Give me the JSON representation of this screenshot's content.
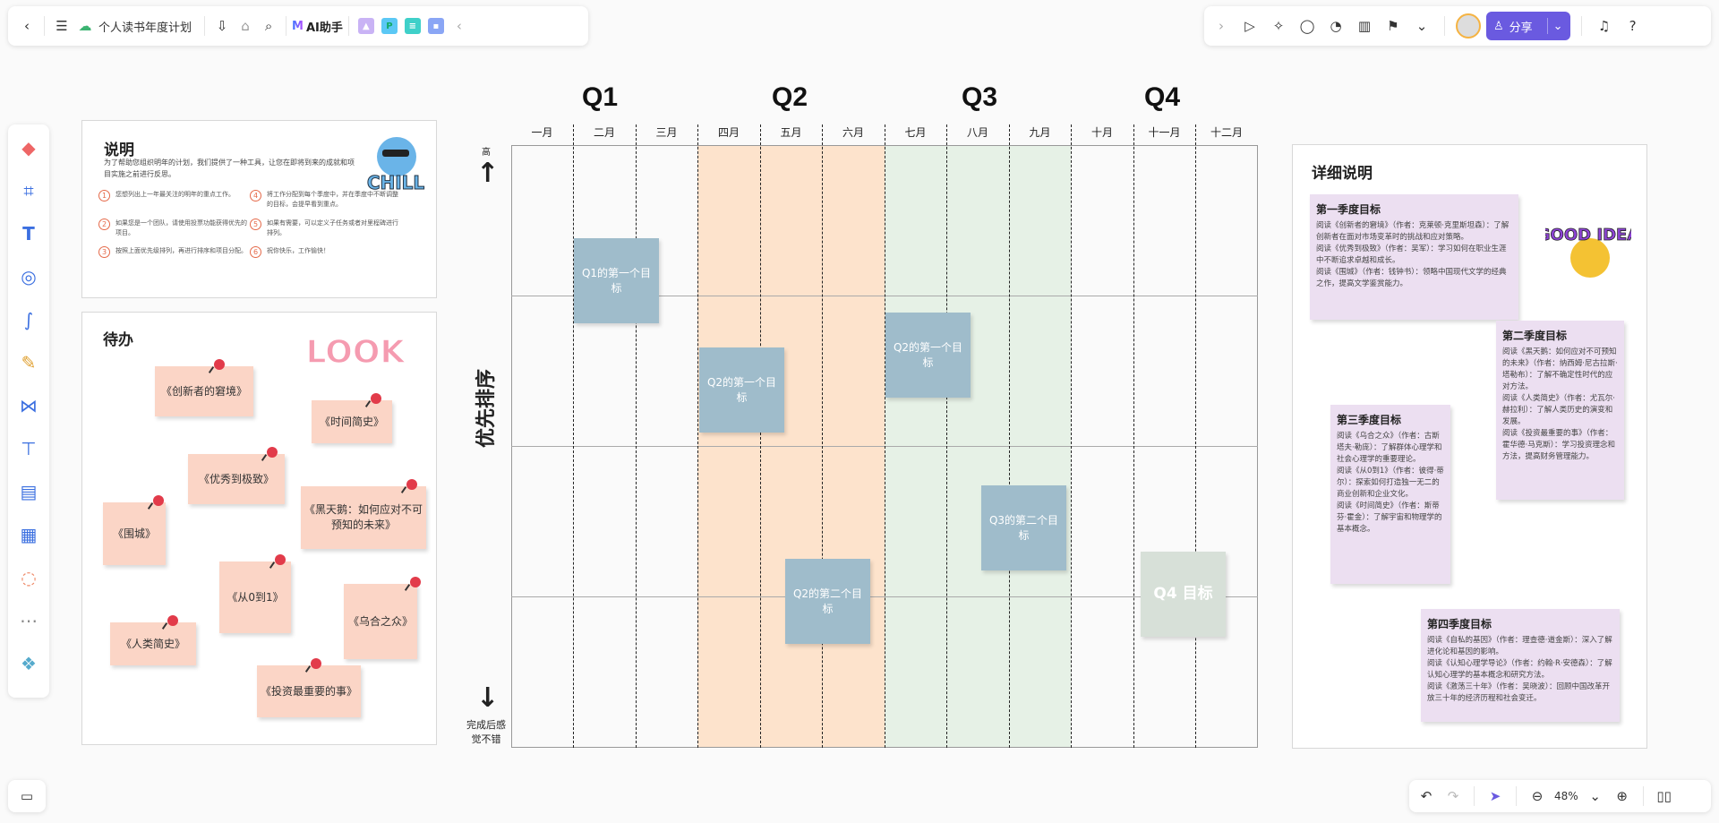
{
  "toolbar": {
    "doc_title": "个人读书年度计划",
    "ai_label": "AI助手",
    "share_label": "分享",
    "zoom": "48%"
  },
  "explain": {
    "title": "说明",
    "intro": "为了帮助您组织明年的计划，我们提供了一种工具，让您在即将到来的成就和项目实施之前进行反思。",
    "steps": [
      {
        "n": "1",
        "text": "您想列出上一年最关注的明年的重点工作。"
      },
      {
        "n": "2",
        "text": "如果您是一个团队，请使用投票功能获得优先的项目。"
      },
      {
        "n": "3",
        "text": "按照上面优先级排列，再进行排序和项目分配。"
      },
      {
        "n": "4",
        "text": "将工作分配到每个季度中，并在季度中不断调整的目标，会提早看到重点。"
      },
      {
        "n": "5",
        "text": "如果有需要，可以定义子任务或者对里程碑进行排列。"
      },
      {
        "n": "6",
        "text": "祝你快乐，工作愉快！"
      }
    ],
    "sticker": "CHILL"
  },
  "todo": {
    "title": "待办",
    "sticker": "LOOK",
    "notes": [
      "《创新者的窘境》",
      "《时间简史》",
      "《优秀到极致》",
      "《黑天鹅：如何应对不可预知的未来》",
      "《围城》",
      "《从0到1》",
      "《乌合之众》",
      "《人类简史》",
      "《投资最重要的事》"
    ]
  },
  "grid": {
    "quarters": [
      "Q1",
      "Q2",
      "Q3",
      "Q4"
    ],
    "months": [
      "一月",
      "二月",
      "三月",
      "四月",
      "五月",
      "六月",
      "七月",
      "八月",
      "九月",
      "十月",
      "十一月",
      "十二月"
    ],
    "axis_title": "优先排序",
    "axis_top": "高",
    "axis_bottom": "完成后感觉不错",
    "goals": [
      "Q1的第一个目标",
      "Q2的第一个目标",
      "Q2的第一个目标",
      "Q2的第二个目标",
      "Q3的第二个目标",
      "Q4 目标"
    ],
    "colors": {
      "q2": "#fde3cc",
      "q3": "#e6f1e6",
      "goal": "#9fbccb",
      "q4goal": "#d7e0d8"
    }
  },
  "detail": {
    "title": "详细说明",
    "sticker": "GOOD IDEA",
    "notes": [
      {
        "title": "第一季度目标",
        "lines": [
          "阅读《创新者的窘境》（作者：克莱顿·克里斯坦森）：了解创新者在面对市场变革时的挑战和应对策略。",
          "阅读《优秀到极致》（作者：吴军）：学习如何在职业生涯中不断追求卓越和成长。",
          "阅读《围城》（作者：钱钟书）：领略中国现代文学的经典之作，提高文学鉴赏能力。"
        ]
      },
      {
        "title": "第二季度目标",
        "lines": [
          "阅读《黑天鹅：如何应对不可预知的未来》（作者：纳西姆·尼古拉斯·塔勒布）：了解不确定性时代的应对方法。",
          "阅读《人类简史》（作者：尤瓦尔·赫拉利）：了解人类历史的演变和发展。",
          "阅读《投资最重要的事》（作者：霍华德·马克斯）：学习投资理念和方法，提高财务管理能力。"
        ]
      },
      {
        "title": "第三季度目标",
        "lines": [
          "阅读《乌合之众》（作者：古斯塔夫·勒庞）：了解群体心理学和社会心理学的重要理论。",
          "阅读《从0到1》（作者：彼得·蒂尔）：探索如何打造独一无二的商业创新和企业文化。",
          "阅读《时间简史》（作者：斯蒂芬·霍金）：了解宇宙和物理学的基本概念。"
        ]
      },
      {
        "title": "第四季度目标",
        "lines": [
          "阅读《自私的基因》（作者：理查德·道金斯）：深入了解进化论和基因的影响。",
          "阅读《认知心理学导论》（作者：约翰·R·安德森）：了解认知心理学的基本概念和研究方法。",
          "阅读《激荡三十年》（作者：吴晓波）：回顾中国改革开放三十年的经济历程和社会变迁。"
        ]
      }
    ]
  }
}
